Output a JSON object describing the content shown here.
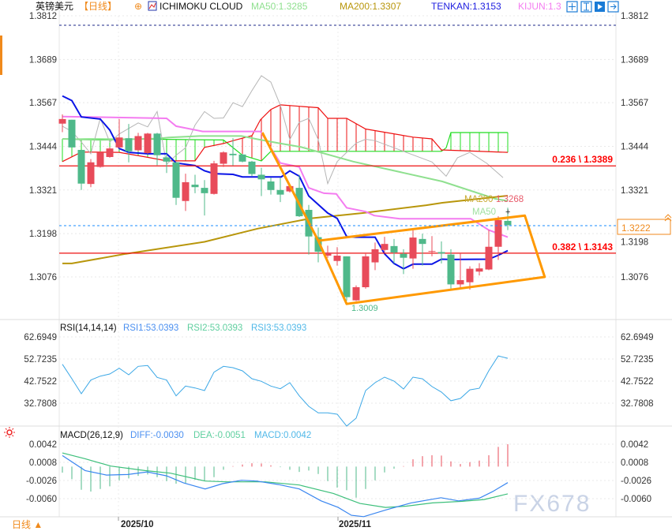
{
  "header": {
    "symbol": "英镑美元",
    "period": "【日线】",
    "indicator": "ICHIMOKU CLOUD",
    "ma50": "MA50:1.3285",
    "ma200": "MA200:1.3307",
    "tenkan": "TENKAN:1.3153",
    "kijun": "KIJUN:1.3"
  },
  "toolbar_icons": [
    "crosshair-icon",
    "fit-vertical-icon",
    "play-icon",
    "exit-icon"
  ],
  "colors": {
    "up": "#e84b5a",
    "down": "#4fb98a",
    "tenkan": "#0a14e6",
    "kijun": "#f47cf0",
    "ma50": "#8fe08f",
    "ma200": "#b8960b",
    "chikou": "#b5b5b5",
    "span_a": "#22dd22",
    "span_b": "#ee1111",
    "fib": "#ee1111",
    "drawing": "#ff9900",
    "last_price": "#1a8cff",
    "accent": "#f08a1c",
    "rsi": "#3aa7e6",
    "diff": "#3a86f0",
    "dea": "#3cbf7a"
  },
  "price_axis": {
    "ticks": [
      "1.3812",
      "1.3689",
      "1.3567",
      "1.3444",
      "1.3321",
      "1.3198",
      "1.3076"
    ],
    "last_price": "1.3222"
  },
  "fib": [
    {
      "label": "0.236 \\ 1.3389",
      "price": 1.3389
    },
    {
      "label": "0.382 \\ 1.3143",
      "price": 1.3143
    }
  ],
  "annotations": {
    "low_label": "1.3009",
    "ma200_label": "MA200",
    "ma200_value": "1.3268",
    "ma50_label": "MA50"
  },
  "candles": [
    [
      1.3508,
      1.3534,
      1.3484,
      1.3521
    ],
    [
      1.3519,
      1.3519,
      1.3441,
      1.3441
    ],
    [
      1.3434,
      1.3434,
      1.3321,
      1.3339
    ],
    [
      1.3338,
      1.3408,
      1.3329,
      1.3399
    ],
    [
      1.3386,
      1.343,
      1.3384,
      1.3427
    ],
    [
      1.3414,
      1.3442,
      1.3412,
      1.3438
    ],
    [
      1.3441,
      1.3521,
      1.3438,
      1.3469
    ],
    [
      1.3467,
      1.3507,
      1.3399,
      1.343
    ],
    [
      1.3433,
      1.3482,
      1.343,
      1.3473
    ],
    [
      1.3425,
      1.3482,
      1.3423,
      1.348
    ],
    [
      1.348,
      1.3482,
      1.3391,
      1.3419
    ],
    [
      1.3413,
      1.3423,
      1.3369,
      1.3401
    ],
    [
      1.3399,
      1.3399,
      1.3279,
      1.3299
    ],
    [
      1.329,
      1.3367,
      1.3262,
      1.3343
    ],
    [
      1.3336,
      1.3364,
      1.3312,
      1.3329
    ],
    [
      1.3327,
      1.3349,
      1.3249,
      1.3312
    ],
    [
      1.331,
      1.3403,
      1.3308,
      1.3396
    ],
    [
      1.3395,
      1.343,
      1.3386,
      1.3427
    ],
    [
      1.3423,
      1.3467,
      1.339,
      1.3419
    ],
    [
      1.3421,
      1.3423,
      1.3399,
      1.3401
    ],
    [
      1.3401,
      1.3403,
      1.336,
      1.3366
    ],
    [
      1.3364,
      1.3384,
      1.3304,
      1.3351
    ],
    [
      1.3345,
      1.3356,
      1.3308,
      1.3321
    ],
    [
      1.3321,
      1.3356,
      1.3287,
      1.3308
    ],
    [
      1.3317,
      1.3338,
      1.3314,
      1.3332
    ],
    [
      1.3327,
      1.3364,
      1.3245,
      1.3247
    ],
    [
      1.3265,
      1.3279,
      1.3139,
      1.319
    ],
    [
      1.3188,
      1.3215,
      1.3117,
      1.3147
    ],
    [
      1.3136,
      1.3164,
      1.313,
      1.3145
    ],
    [
      1.3121,
      1.316,
      1.3108,
      1.3136
    ],
    [
      1.3134,
      1.3134,
      1.3009,
      1.3019
    ],
    [
      1.301,
      1.3052,
      1.3008,
      1.3047
    ],
    [
      1.3047,
      1.3141,
      1.3043,
      1.3134
    ],
    [
      1.3117,
      1.3173,
      1.3095,
      1.3154
    ],
    [
      1.3152,
      1.3189,
      1.3146,
      1.3169
    ],
    [
      1.3163,
      1.3183,
      1.3114,
      1.3145
    ],
    [
      1.3141,
      1.3154,
      1.3084,
      1.313
    ],
    [
      1.3128,
      1.3208,
      1.3099,
      1.3187
    ],
    [
      1.3183,
      1.3198,
      1.3108,
      1.3169
    ],
    [
      1.3148,
      1.3191,
      1.3134,
      1.3149
    ],
    [
      1.3146,
      1.3176,
      1.3114,
      1.3142
    ],
    [
      1.3139,
      1.3154,
      1.3043,
      1.3055
    ],
    [
      1.3055,
      1.3143,
      1.3043,
      1.3067
    ],
    [
      1.3061,
      1.3106,
      1.304,
      1.3099
    ],
    [
      1.3091,
      1.3115,
      1.308,
      1.31
    ],
    [
      1.3097,
      1.3208,
      1.3095,
      1.3161
    ],
    [
      1.3161,
      1.3247,
      1.3124,
      1.3236
    ],
    [
      1.3234,
      1.3271,
      1.3208,
      1.3222
    ]
  ],
  "lines": {
    "tenkan": [
      [
        1,
        1.3586
      ],
      [
        2,
        1.3573
      ],
      [
        3,
        1.3527
      ],
      [
        5,
        1.3521
      ],
      [
        6,
        1.349
      ],
      [
        7,
        1.3438
      ],
      [
        8,
        1.3427
      ],
      [
        10,
        1.3423
      ],
      [
        12,
        1.3423
      ],
      [
        13,
        1.3397
      ],
      [
        15,
        1.339
      ],
      [
        16,
        1.3375
      ],
      [
        17,
        1.3367
      ],
      [
        19,
        1.3365
      ],
      [
        20,
        1.3358
      ],
      [
        24.1,
        1.3358
      ],
      [
        25,
        1.3375
      ],
      [
        26,
        1.336
      ],
      [
        27,
        1.3304
      ],
      [
        29,
        1.3256
      ],
      [
        30,
        1.3241
      ],
      [
        31,
        1.319
      ],
      [
        32,
        1.3188
      ],
      [
        34,
        1.3188
      ],
      [
        35,
        1.3141
      ],
      [
        36,
        1.3114
      ],
      [
        37,
        1.3099
      ],
      [
        38,
        1.3112
      ],
      [
        40,
        1.3112
      ],
      [
        41,
        1.3126
      ],
      [
        42,
        1.3125
      ],
      [
        46,
        1.3126
      ],
      [
        47,
        1.3137
      ],
      [
        48,
        1.315
      ]
    ],
    "kijun": [
      [
        1,
        1.3528
      ],
      [
        12,
        1.3523
      ],
      [
        13,
        1.3501
      ],
      [
        15.8,
        1.3486
      ],
      [
        21.9,
        1.3486
      ],
      [
        24,
        1.3397
      ],
      [
        26,
        1.3386
      ],
      [
        27,
        1.3327
      ],
      [
        28.6,
        1.3312
      ],
      [
        29.9,
        1.331
      ],
      [
        31,
        1.3271
      ],
      [
        33,
        1.326
      ],
      [
        33.9,
        1.3249
      ],
      [
        36.6,
        1.324
      ],
      [
        44.1,
        1.324
      ],
      [
        46,
        1.3208
      ],
      [
        48,
        1.3188
      ]
    ],
    "ma50": [
      [
        1,
        1.3465
      ],
      [
        4.9,
        1.3462
      ],
      [
        11.1,
        1.3466
      ],
      [
        12.2,
        1.3469
      ],
      [
        15.5,
        1.3473
      ],
      [
        19.9,
        1.3473
      ],
      [
        21.6,
        1.3464
      ],
      [
        23.8,
        1.3453
      ],
      [
        26.2,
        1.3442
      ],
      [
        31.7,
        1.3401
      ],
      [
        41.1,
        1.3345
      ],
      [
        46.7,
        1.3296
      ],
      [
        48,
        1.329
      ]
    ],
    "ma200": [
      [
        1,
        1.3114
      ],
      [
        2,
        1.3114
      ],
      [
        7.7,
        1.3141
      ],
      [
        16,
        1.3175
      ],
      [
        21.6,
        1.3212
      ],
      [
        27.2,
        1.3241
      ],
      [
        32.7,
        1.3256
      ],
      [
        39.4,
        1.3278
      ],
      [
        41.1,
        1.3285
      ],
      [
        48,
        1.3305
      ]
    ],
    "chikou": [
      [
        1,
        1.3501
      ],
      [
        2,
        1.3486
      ],
      [
        3,
        1.3456
      ],
      [
        4,
        1.3423
      ],
      [
        5,
        1.3523
      ],
      [
        6,
        1.3456
      ],
      [
        7,
        1.3479
      ],
      [
        9,
        1.351
      ],
      [
        10,
        1.3499
      ],
      [
        11,
        1.3542
      ],
      [
        12,
        1.3393
      ],
      [
        13,
        1.3419
      ],
      [
        14,
        1.344
      ],
      [
        15,
        1.3504
      ],
      [
        16,
        1.3542
      ],
      [
        17,
        1.3523
      ],
      [
        18,
        1.3524
      ],
      [
        19,
        1.3567
      ],
      [
        20,
        1.3556
      ],
      [
        21,
        1.3601
      ],
      [
        22,
        1.3643
      ],
      [
        23,
        1.3625
      ],
      [
        24,
        1.356
      ],
      [
        25,
        1.3463
      ],
      [
        26,
        1.3512
      ],
      [
        27,
        1.3523
      ],
      [
        28,
        1.3463
      ],
      [
        29,
        1.3339
      ],
      [
        30,
        1.3401
      ],
      [
        31,
        1.3427
      ],
      [
        32,
        1.3453
      ],
      [
        33,
        1.3464
      ],
      [
        34,
        1.346
      ],
      [
        36,
        1.344
      ],
      [
        38,
        1.342
      ],
      [
        40,
        1.34
      ],
      [
        41.5,
        1.336
      ],
      [
        42.7,
        1.3412
      ],
      [
        44,
        1.3427
      ],
      [
        45.8,
        1.3396
      ],
      [
        47.5,
        1.3356
      ]
    ],
    "span_b": [
      [
        1,
        1.3401
      ],
      [
        3,
        1.3428
      ],
      [
        7,
        1.3427
      ],
      [
        10,
        1.3413
      ],
      [
        12,
        1.3403
      ],
      [
        15,
        1.3403
      ],
      [
        16,
        1.3441
      ],
      [
        18,
        1.3452
      ],
      [
        19,
        1.346
      ],
      [
        21,
        1.3474
      ],
      [
        21.9,
        1.3519
      ],
      [
        23,
        1.3548
      ],
      [
        24,
        1.3561
      ],
      [
        28,
        1.3553
      ],
      [
        29,
        1.3523
      ],
      [
        31,
        1.3523
      ],
      [
        33,
        1.3493
      ],
      [
        38,
        1.347
      ],
      [
        40,
        1.3465
      ],
      [
        41,
        1.3434
      ],
      [
        48,
        1.3427
      ]
    ],
    "span_a": [
      [
        1,
        1.3465
      ],
      [
        11,
        1.3464
      ],
      [
        18,
        1.3462
      ],
      [
        20,
        1.3419
      ],
      [
        22,
        1.3403
      ],
      [
        23,
        1.343
      ],
      [
        41,
        1.343
      ],
      [
        41.5,
        1.344
      ],
      [
        42,
        1.3483
      ],
      [
        48,
        1.3483
      ]
    ]
  },
  "drawing": [
    [
      22.1,
      1.3483
    ],
    [
      28,
      1.3178
    ],
    [
      31,
      1.3
    ],
    [
      51.9,
      1.3076
    ],
    [
      49.8,
      1.3249
    ],
    [
      28,
      1.3178
    ]
  ],
  "rsi": {
    "title": "RSI(14,14,14)",
    "rsi1": "RSI1:53.0393",
    "rsi2": "RSI2:53.0393",
    "rsi3": "RSI3:53.0393",
    "ticks": [
      "62.6949",
      "52.7235",
      "42.7522",
      "32.7808"
    ],
    "values": [
      50.33,
      43.82,
      37.05,
      43.21,
      44.99,
      45.96,
      48.56,
      45.6,
      49.4,
      49.76,
      44.42,
      43.21,
      36.09,
      40.5,
      39.65,
      38.48,
      46.78,
      49.4,
      48.8,
      47.38,
      43.82,
      42.64,
      40.5,
      39.3,
      42.04,
      36.09,
      31.36,
      28.39,
      28.39,
      27.8,
      22.45,
      26.0,
      38.48,
      42.04,
      44.53,
      42.76,
      39.2,
      44.53,
      43.8,
      40.3,
      37.8,
      33.9,
      34.9,
      38.8,
      39.5,
      47.4,
      54.1,
      53.04
    ]
  },
  "macd": {
    "title": "MACD(26,12,9)",
    "diff_label": "DIFF:-0.0030",
    "dea_label": "DEA:-0.0051",
    "macd_label": "MACD:0.0042",
    "ticks": [
      "0.0042",
      "0.0008",
      "-0.0026",
      "-0.0060"
    ],
    "hist": [
      -0.00113,
      -0.00237,
      -0.00434,
      -0.00468,
      -0.00419,
      -0.0037,
      -0.00256,
      -0.00222,
      -0.00173,
      -0.00148,
      -0.00197,
      -0.00271,
      -0.0032,
      -0.0032,
      -0.00247,
      -0.00271,
      -0.00197,
      -0.00059,
      0.0001,
      0.00039,
      0.00064,
      0.00059,
      0.00025,
      -0.0001,
      -0.00059,
      -0.00099,
      -0.00074,
      -0.00138,
      -0.00271,
      -0.00394,
      -0.00444,
      -0.00582,
      -0.00419,
      -0.00256,
      -0.00108,
      -0.00039,
      0.0001,
      0.00138,
      0.00197,
      0.00212,
      0.00207,
      0.00099,
      0.00049,
      0.00084,
      0.00113,
      0.00212,
      0.0037,
      0.0042
    ],
    "diff": [
      [
        1,
        0.00207
      ],
      [
        3.4,
        -0.00074
      ],
      [
        5.66,
        -0.00158
      ],
      [
        7.92,
        -0.00148
      ],
      [
        9.96,
        -0.00099
      ],
      [
        12,
        -0.00173
      ],
      [
        13.8,
        -0.00306
      ],
      [
        16.07,
        -0.00419
      ],
      [
        17.9,
        -0.0032
      ],
      [
        19.9,
        -0.00256
      ],
      [
        21.5,
        -0.00271
      ],
      [
        23.8,
        -0.00335
      ],
      [
        26,
        -0.00419
      ],
      [
        28.3,
        -0.00641
      ],
      [
        30.1,
        -0.00764
      ],
      [
        31.5,
        -0.00912
      ],
      [
        32.8,
        -0.00937
      ],
      [
        35.1,
        -0.00813
      ],
      [
        37.8,
        -0.0068
      ],
      [
        40.95,
        -0.00582
      ],
      [
        42.8,
        -0.00641
      ],
      [
        45,
        -0.00592
      ],
      [
        46.4,
        -0.00468
      ],
      [
        48,
        -0.003
      ]
    ],
    "dea": [
      [
        1,
        0.00256
      ],
      [
        3.4,
        0.00148
      ],
      [
        6.1,
        0.0001
      ],
      [
        9.7,
        -0.00074
      ],
      [
        12.4,
        -0.00123
      ],
      [
        16.07,
        -0.00271
      ],
      [
        18.3,
        -0.00286
      ],
      [
        22.4,
        -0.00286
      ],
      [
        26,
        -0.00345
      ],
      [
        29.6,
        -0.00503
      ],
      [
        32.4,
        -0.0069
      ],
      [
        35.1,
        -0.00764
      ],
      [
        37.3,
        -0.0074
      ],
      [
        40.05,
        -0.0068
      ],
      [
        43.2,
        -0.00651
      ],
      [
        45.5,
        -0.00616
      ],
      [
        48,
        -0.0051
      ]
    ]
  },
  "time_axis": {
    "labels": [
      "2025/10",
      "2025/11"
    ],
    "period_button": "日线 ▲"
  },
  "watermark": "FX678"
}
